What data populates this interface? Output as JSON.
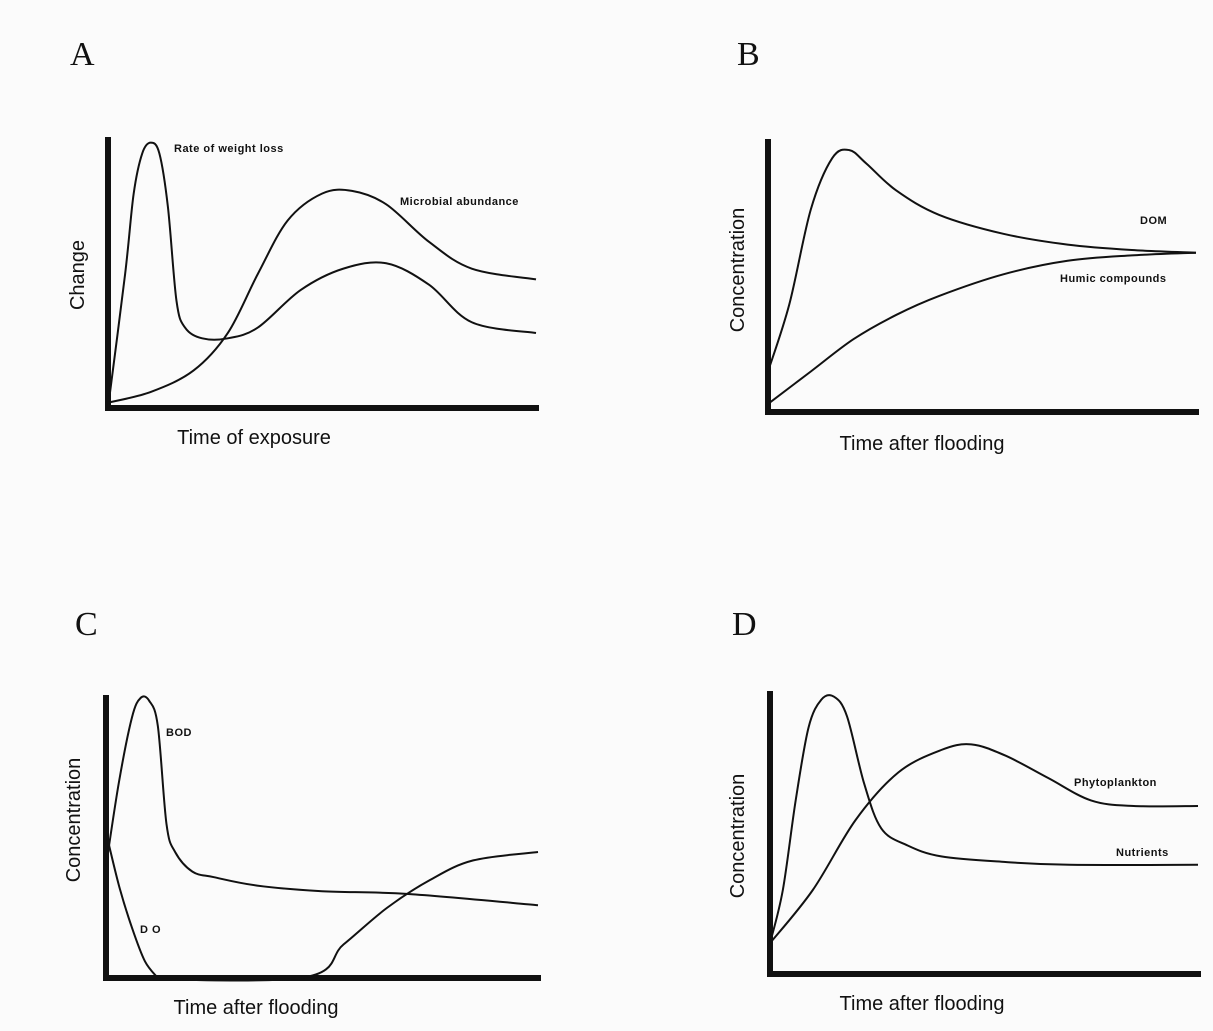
{
  "panels": {
    "A": {
      "letter": "A",
      "xlabel": "Time of exposure",
      "ylabel": "Change"
    },
    "B": {
      "letter": "B",
      "xlabel": "Time after flooding",
      "ylabel": "Concentration"
    },
    "C": {
      "letter": "C",
      "xlabel": "Time after flooding",
      "ylabel": "Concentration"
    },
    "D": {
      "letter": "D",
      "xlabel": "Time after flooding",
      "ylabel": "Concentration"
    }
  },
  "chart_data": [
    {
      "panel": "A",
      "type": "line",
      "xlabel": "Time of exposure",
      "ylabel": "Change",
      "xlim": [
        0,
        100
      ],
      "ylim": [
        0,
        100
      ],
      "series": [
        {
          "name": "Rate of weight loss",
          "x": [
            0,
            4,
            6,
            8,
            10,
            12,
            14,
            16,
            18,
            22,
            28,
            35,
            45,
            55,
            65,
            75,
            85,
            100
          ],
          "y": [
            0,
            50,
            80,
            95,
            99,
            95,
            75,
            40,
            30,
            26,
            26,
            30,
            44,
            52,
            54,
            46,
            32,
            28
          ]
        },
        {
          "name": "Microbial abundance",
          "x": [
            0,
            10,
            20,
            28,
            35,
            42,
            50,
            57,
            65,
            75,
            85,
            100
          ],
          "y": [
            2,
            6,
            14,
            28,
            50,
            70,
            80,
            81,
            76,
            62,
            52,
            48
          ]
        }
      ]
    },
    {
      "panel": "B",
      "type": "line",
      "xlabel": "Time after flooding",
      "ylabel": "Concentration",
      "xlim": [
        0,
        100
      ],
      "ylim": [
        0,
        100
      ],
      "series": [
        {
          "name": "DOM",
          "x": [
            0,
            5,
            10,
            15,
            19,
            23,
            30,
            40,
            55,
            70,
            85,
            100
          ],
          "y": [
            15,
            40,
            75,
            94,
            97,
            92,
            82,
            73,
            66,
            62,
            60,
            59
          ]
        },
        {
          "name": "Humic compounds",
          "x": [
            0,
            10,
            20,
            30,
            40,
            55,
            70,
            85,
            100
          ],
          "y": [
            3,
            15,
            27,
            36,
            43,
            51,
            56,
            58,
            59
          ]
        }
      ]
    },
    {
      "panel": "C",
      "type": "line",
      "xlabel": "Time after flooding",
      "ylabel": "Concentration",
      "xlim": [
        0,
        100
      ],
      "ylim": [
        0,
        100
      ],
      "series": [
        {
          "name": "BOD",
          "x": [
            0,
            3,
            6,
            8,
            10,
            12,
            14,
            16,
            20,
            25,
            35,
            50,
            70,
            100
          ],
          "y": [
            40,
            70,
            93,
            100,
            99,
            90,
            55,
            45,
            38,
            36,
            33,
            31,
            30,
            26
          ]
        },
        {
          "name": "D O",
          "x": [
            0,
            3,
            6,
            9,
            12
          ],
          "y": [
            52,
            33,
            18,
            6,
            0
          ]
        },
        {
          "name": "",
          "x": [
            0,
            45,
            55,
            65,
            75,
            85,
            100
          ],
          "y": [
            0,
            0,
            12,
            25,
            35,
            42,
            45
          ]
        }
      ]
    },
    {
      "panel": "D",
      "type": "line",
      "xlabel": "Time after flooding",
      "ylabel": "Concentration",
      "xlim": [
        0,
        100
      ],
      "ylim": [
        0,
        100
      ],
      "series": [
        {
          "name": "Nutrients",
          "x": [
            0,
            3,
            6,
            9,
            12,
            15,
            18,
            22,
            26,
            32,
            40,
            55,
            70,
            100
          ],
          "y": [
            11,
            30,
            62,
            88,
            98,
            99,
            92,
            68,
            52,
            46,
            42,
            40,
            39,
            39
          ]
        },
        {
          "name": "Phytoplankton",
          "x": [
            0,
            10,
            20,
            30,
            40,
            47,
            55,
            65,
            75,
            85,
            100
          ],
          "y": [
            11,
            30,
            55,
            72,
            80,
            82,
            78,
            70,
            62,
            60,
            60
          ]
        }
      ]
    }
  ]
}
